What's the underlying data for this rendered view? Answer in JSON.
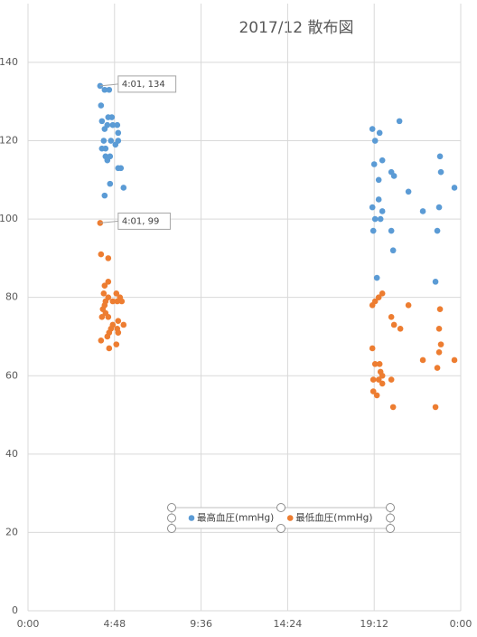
{
  "chart_data": {
    "type": "scatter",
    "title": "2017/12 散布図",
    "xlim": [
      0,
      24
    ],
    "ylim": [
      0,
      155
    ],
    "xticks": [
      {
        "value": 0,
        "label": "0:00"
      },
      {
        "value": 4.8,
        "label": "4:48"
      },
      {
        "value": 9.6,
        "label": "9:36"
      },
      {
        "value": 14.4,
        "label": "14:24"
      },
      {
        "value": 19.2,
        "label": "19:12"
      },
      {
        "value": 24,
        "label": "0:00"
      }
    ],
    "yticks": [
      0,
      20,
      40,
      60,
      80,
      100,
      120,
      140
    ],
    "grid": true,
    "legend": "bottom",
    "series": [
      {
        "name": "最高血圧(mmHg)",
        "color": "#5b9bd5",
        "x": [
          4.0,
          4.25,
          4.5,
          4.05,
          4.1,
          4.45,
          4.65,
          4.25,
          4.4,
          4.7,
          4.95,
          5.0,
          4.6,
          4.2,
          4.85,
          5.0,
          4.1,
          4.3,
          4.3,
          4.55,
          4.4,
          5.0,
          5.15,
          4.55,
          5.3,
          4.25,
          19.1,
          19.5,
          20.6,
          19.25,
          19.2,
          19.65,
          20.15,
          20.3,
          19.45,
          21.1,
          22.85,
          22.9,
          23.65,
          19.1,
          19.65,
          19.45,
          21.9,
          22.8,
          19.25,
          19.55,
          19.15,
          20.15,
          22.7,
          20.25,
          19.35,
          22.6
        ],
        "values": [
          134,
          133,
          133,
          129,
          125,
          126,
          126,
          123,
          124,
          124,
          124,
          122,
          120,
          120,
          119,
          120,
          118,
          118,
          116,
          116,
          115,
          113,
          113,
          109,
          108,
          106,
          123,
          122,
          125,
          120,
          114,
          115,
          112,
          111,
          110,
          107,
          116,
          112,
          108,
          103,
          102,
          105,
          102,
          103,
          100,
          100,
          97,
          97,
          97,
          92,
          85,
          84
        ],
        "value_labels": [
          "4:01, 134",
          null,
          null,
          null,
          null,
          null,
          null,
          null,
          null,
          null,
          null,
          null,
          null,
          null,
          null,
          null,
          null,
          null,
          null,
          null,
          null,
          null,
          null,
          null,
          null,
          null,
          null,
          null,
          null,
          null,
          null,
          null,
          null,
          null,
          null,
          null,
          null,
          null,
          null,
          null,
          null,
          null,
          null,
          null,
          null,
          null,
          null,
          null,
          null,
          null,
          null,
          null
        ]
      },
      {
        "name": "最低血圧(mmHg)",
        "color": "#ed7d31",
        "x": [
          4.0,
          4.05,
          4.45,
          4.25,
          4.45,
          4.2,
          4.45,
          4.3,
          4.9,
          4.7,
          5.1,
          4.95,
          5.2,
          4.15,
          4.25,
          4.3,
          4.1,
          4.45,
          4.7,
          4.6,
          4.95,
          4.5,
          4.4,
          5.0,
          5.3,
          5.0,
          4.05,
          4.5,
          4.9,
          19.1,
          19.25,
          19.45,
          19.65,
          21.1,
          20.15,
          20.3,
          20.65,
          22.85,
          22.8,
          22.9,
          22.8,
          21.9,
          23.65,
          22.7,
          19.1,
          19.25,
          19.5,
          19.55,
          19.65,
          19.65,
          19.15,
          19.45,
          20.15,
          19.15,
          19.35,
          20.25,
          22.6
        ],
        "values": [
          99,
          91,
          90,
          83,
          84,
          81,
          80,
          79,
          81,
          79,
          80,
          79,
          79,
          77,
          78,
          76,
          75,
          75,
          73,
          72,
          72,
          71,
          70,
          71,
          73,
          74,
          69,
          67,
          68,
          78,
          79,
          80,
          81,
          78,
          75,
          73,
          72,
          77,
          72,
          68,
          66,
          64,
          64,
          62,
          67,
          63,
          63,
          61,
          60,
          58,
          59,
          59,
          59,
          56,
          55,
          52,
          52
        ],
        "value_labels": [
          "4:01, 99",
          null,
          null,
          null,
          null,
          null,
          null,
          null,
          null,
          null,
          null,
          null,
          null,
          null,
          null,
          null,
          null,
          null,
          null,
          null,
          null,
          null,
          null,
          null,
          null,
          null,
          null,
          null,
          null,
          null,
          null,
          null,
          null,
          null,
          null,
          null,
          null,
          null,
          null,
          null,
          null,
          null,
          null,
          null,
          null,
          null,
          null,
          null,
          null,
          null,
          null,
          null,
          null,
          null,
          null,
          null,
          null
        ]
      }
    ]
  }
}
